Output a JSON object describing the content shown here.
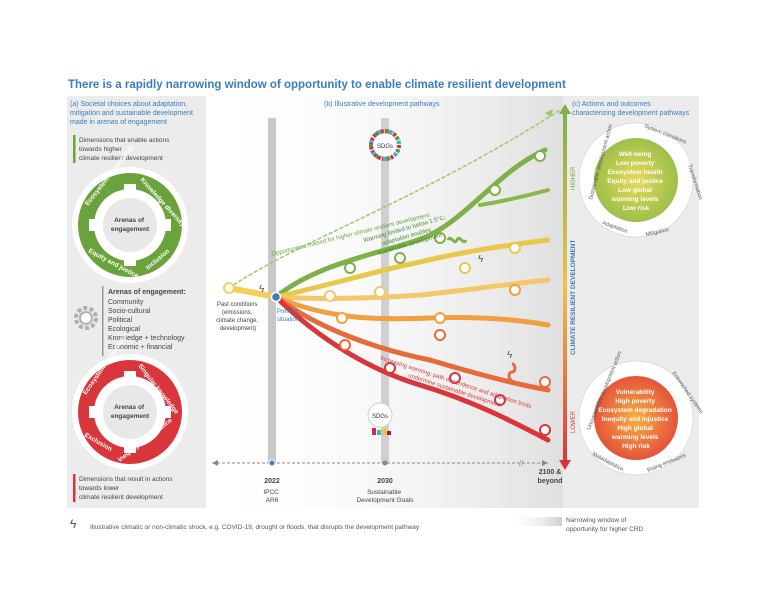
{
  "title": "There is a rapidly narrowing window of opportunity to enable climate resilient development",
  "panel_a": {
    "header": [
      "(a) Societal choices about adaptation,",
      "mitigation and sustainable development",
      "made in arenas of engagement"
    ],
    "higher_text": [
      "Dimensions that enable actions",
      "towards higher",
      "climate resilient development"
    ],
    "lower_text": [
      "Dimensions that result in actions",
      "towards lower",
      "climate resilient development"
    ],
    "wheel_center": [
      "Arenas of",
      "engagement"
    ],
    "green_wheel": [
      "Ecosystem stewardship",
      "Knowledge diversity",
      "Equity and justice",
      "Inclusion"
    ],
    "red_wheel": [
      "Ecosystem degradation",
      "Singular knowledge",
      "Exclusion",
      "Inequity and injustice"
    ],
    "arenas_title": "Arenas of engagement:",
    "arenas": [
      "Community",
      "Socio-cultural",
      "Political",
      "Ecological",
      "Knowledge + technology",
      "Economic + financial"
    ]
  },
  "panel_b": {
    "header": "(b) Illustrative development pathways",
    "sdgs": "SDGs",
    "past": [
      "Past conditions",
      "(emissions,",
      "climate change,",
      "development)"
    ],
    "present": [
      "Present",
      "situation"
    ],
    "missed": "Opportunities missed for higher climate resilient development",
    "warming_limited": [
      "Warming limited to below 1.5°C;",
      "adaptation enables",
      "sustainable development"
    ],
    "increasing": [
      "Increasing warming; path dependence and adaptation limits",
      "undermine sustainable development"
    ],
    "ticks": [
      {
        "label": "2022",
        "sub": [
          "IPCC",
          "AR6"
        ]
      },
      {
        "label": "2030",
        "sub": [
          "Sustainable",
          "Development Goals"
        ]
      },
      {
        "label": "2100 &",
        "sub": [
          "beyond"
        ]
      }
    ]
  },
  "panel_c": {
    "header": [
      "(c) Actions and outcomes",
      "characterizing development pathways"
    ],
    "axis_label": "CLIMATE RESILIENT DEVELOPMENT",
    "higher": "HIGHER",
    "lower": "LOWER",
    "high_outcomes": [
      "Well-being",
      "Low poverty",
      "Ecosystem health",
      "Equity and justice",
      "Low global",
      "warming levels",
      "Low risk"
    ],
    "high_ring": [
      "Sustainable development action",
      "System transitions",
      "Transformation",
      "Mitigation",
      "Adaptation"
    ],
    "low_outcomes": [
      "Vulnerability",
      "High poverty",
      "Ecosystem degradation",
      "Inequity and injustice",
      "High global",
      "warming levels",
      "High risk"
    ],
    "low_ring": [
      "Unsustainable development action",
      "Entrenched systems",
      "Rising emissions",
      "Maladaptation"
    ]
  },
  "footer": {
    "shock": "Illustrative climatic or non-climatic shock, e.g. COVID-19, drought or floods, that disrupts the development pathway",
    "window": [
      "Narrowing window of",
      "opportunity for higher CRD"
    ]
  },
  "colors": {
    "title_blue": "#3a7dc0",
    "green": "#6aa33c",
    "red": "#d8363b",
    "orange": "#ee9a38",
    "yellow": "#f3cf5a",
    "grey": "#d9d9d9"
  }
}
